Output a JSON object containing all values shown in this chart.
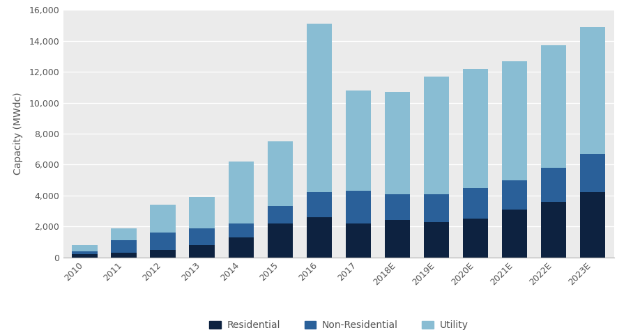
{
  "categories": [
    "2010",
    "2011",
    "2012",
    "2013",
    "2014",
    "2015",
    "2016",
    "2017",
    "2018E",
    "2019E",
    "2020E",
    "2021E",
    "2022E",
    "2023E"
  ],
  "residential": [
    200,
    300,
    500,
    800,
    1300,
    2200,
    2600,
    2200,
    2400,
    2300,
    2500,
    3100,
    3600,
    4200
  ],
  "non_residential": [
    200,
    800,
    1100,
    1100,
    900,
    1100,
    1600,
    2100,
    1700,
    1800,
    2000,
    1900,
    2200,
    2500
  ],
  "utility": [
    400,
    800,
    1800,
    2000,
    4000,
    4200,
    10900,
    6500,
    6600,
    7600,
    7700,
    7700,
    7900,
    8200
  ],
  "residential_color": "#0d2240",
  "non_residential_color": "#2a6099",
  "utility_color": "#89bdd3",
  "background_color": "#ebebeb",
  "plot_bg_color": "#ebebeb",
  "fig_bg_color": "#ffffff",
  "ylabel": "Capacity (MWdc)",
  "ylim": [
    0,
    16000
  ],
  "yticks": [
    0,
    2000,
    4000,
    6000,
    8000,
    10000,
    12000,
    14000,
    16000
  ],
  "legend_labels": [
    "Residential",
    "Non-Residential",
    "Utility"
  ],
  "tick_color": "#555555",
  "spine_color": "#aaaaaa",
  "grid_color": "#ffffff",
  "bar_width": 0.65,
  "label_fontsize": 9,
  "ylabel_fontsize": 10
}
